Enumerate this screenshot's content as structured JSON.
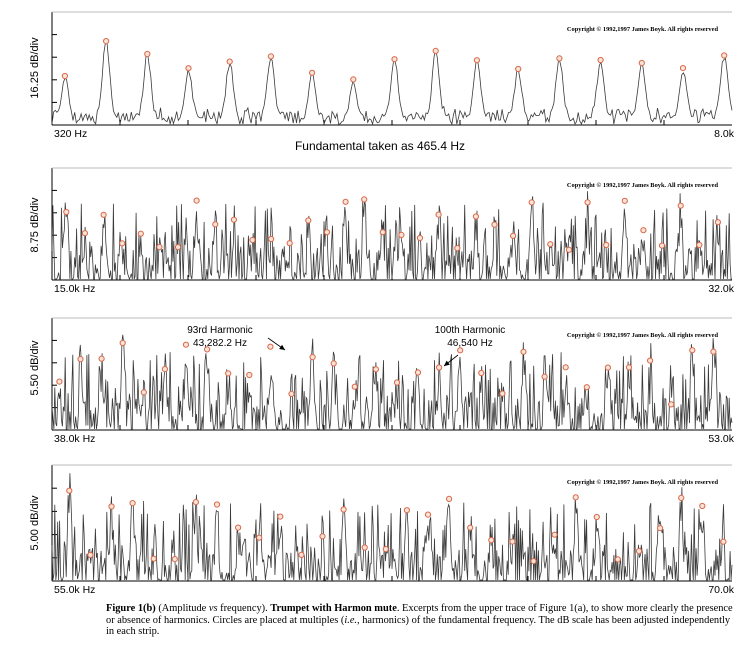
{
  "chart_data": [
    {
      "type": "line",
      "ylabel": "16.25 dB/div",
      "x_start_label": "320 Hz",
      "x_end_label": "8.0k",
      "x_range_hz": [
        320,
        8000
      ],
      "copyright": "Copyright © 1992,1997 James Boyk. All rights reserved",
      "subtitle": "Fundamental taken as 465.4 Hz",
      "fundamental_hz": 465.4,
      "harmonic_markers": [
        1,
        2,
        3,
        4,
        5,
        6,
        7,
        8,
        9,
        10,
        11,
        12,
        13,
        14,
        15,
        16,
        17
      ],
      "annotations": []
    },
    {
      "type": "line",
      "ylabel": "8.75 dB/div",
      "x_start_label": "15.0k Hz",
      "x_end_label": "32.0k",
      "x_range_hz": [
        15000,
        32000
      ],
      "copyright": "Copyright © 1992,1997 James Boyk. All rights reserved",
      "harmonic_markers": [
        33,
        34,
        35,
        36,
        37,
        38,
        39,
        40,
        41,
        42,
        43,
        44,
        45,
        46,
        47,
        48,
        49,
        50,
        51,
        52,
        53,
        54,
        55,
        56,
        57,
        58,
        59,
        60,
        61,
        62,
        63,
        64,
        65,
        66,
        67,
        68
      ],
      "annotations": []
    },
    {
      "type": "line",
      "ylabel": "5.50 dB/div",
      "x_start_label": "38.0k Hz",
      "x_end_label": "53.0k",
      "x_range_hz": [
        38000,
        53000
      ],
      "copyright": "Copyright © 1992,1997 James Boyk. All rights reserved",
      "harmonic_markers": [
        82,
        83,
        84,
        85,
        86,
        87,
        88,
        89,
        90,
        91,
        92,
        93,
        94,
        95,
        96,
        97,
        98,
        99,
        100,
        101,
        102,
        103,
        104,
        105,
        106,
        107,
        108,
        109,
        110,
        111,
        112,
        113
      ],
      "annotations": [
        {
          "line1": "93rd Harmonic",
          "line2": "43,282.2 Hz",
          "harmonic": 93
        },
        {
          "line1": "100th Harmonic",
          "line2": "46,540 Hz",
          "harmonic": 100
        }
      ]
    },
    {
      "type": "line",
      "ylabel": "5.00 dB/div",
      "x_start_label": "55.0k Hz",
      "x_end_label": "70.0k",
      "x_range_hz": [
        55000,
        70000
      ],
      "copyright": "Copyright © 1992,1997 James Boyk. All rights reserved",
      "harmonic_markers": [
        119,
        120,
        121,
        122,
        123,
        124,
        125,
        126,
        127,
        128,
        129,
        130,
        131,
        132,
        133,
        134,
        135,
        136,
        137,
        138,
        139,
        140,
        141,
        142,
        143,
        144,
        145,
        146,
        147,
        148,
        149,
        150
      ],
      "annotations": []
    }
  ],
  "caption": {
    "fig_label": "Figure 1(b)",
    "p1": " (Amplitude ",
    "vs": "vs",
    "p2": " frequency). ",
    "bold_title": "Trumpet with Harmon mute",
    "p3": ". Excerpts from the upper trace of Figure 1(a), to show more clearly the presence or absence of harmonics. Circles are placed at multiples (",
    "ie": "i.e.",
    "p4": ", harmonics) of the fundamental frequency. The dB scale has been adjusted independently in each strip."
  },
  "colors": {
    "trace": "#3a3a3a",
    "marker": "#d9684a",
    "marker_fill": "#f7e3d7",
    "axis": "#000000"
  }
}
